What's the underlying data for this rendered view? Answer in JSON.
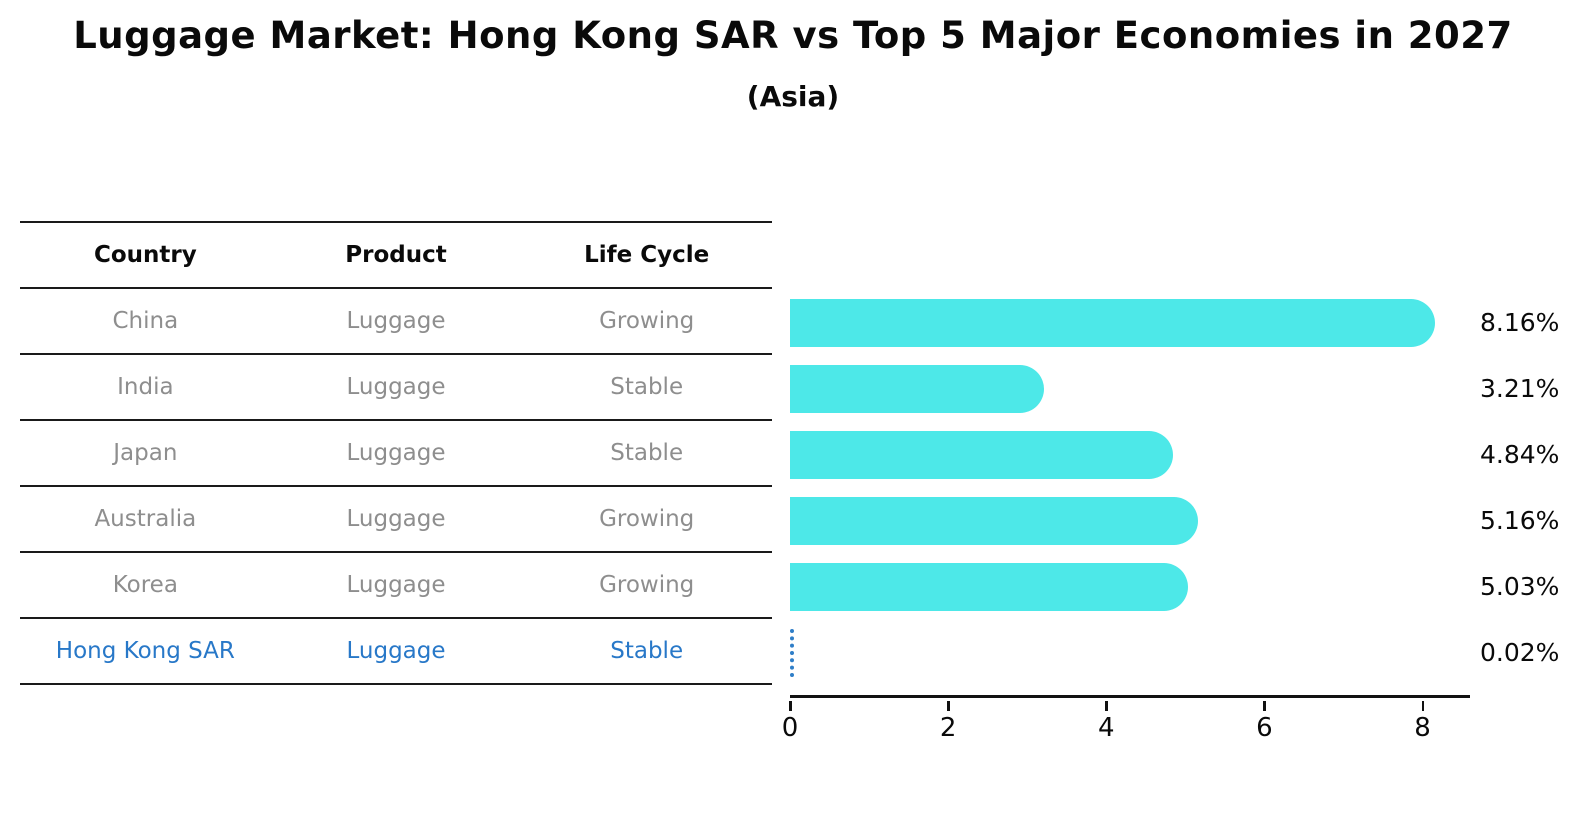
{
  "title": "Luggage Market: Hong Kong SAR vs Top 5 Major Economies in 2027",
  "subtitle": "(Asia)",
  "table": {
    "headers": [
      "Country",
      "Product",
      "Life Cycle"
    ],
    "rows": [
      {
        "country": "China",
        "product": "Luggage",
        "life_cycle": "Growing"
      },
      {
        "country": "India",
        "product": "Luggage",
        "life_cycle": "Stable"
      },
      {
        "country": "Japan",
        "product": "Luggage",
        "life_cycle": "Stable"
      },
      {
        "country": "Australia",
        "product": "Luggage",
        "life_cycle": "Growing"
      },
      {
        "country": "Korea",
        "product": "Luggage",
        "life_cycle": "Growing"
      },
      {
        "country": "Hong Kong SAR",
        "product": "Luggage",
        "life_cycle": "Stable"
      }
    ],
    "highlighted_row": "Hong Kong SAR"
  },
  "chart_data": {
    "type": "bar",
    "orientation": "horizontal",
    "categories": [
      "China",
      "India",
      "Japan",
      "Australia",
      "Korea",
      "Hong Kong SAR"
    ],
    "values": [
      8.16,
      3.21,
      4.84,
      5.16,
      5.03,
      0.02
    ],
    "value_labels": [
      "8.16%",
      "3.21%",
      "4.84%",
      "5.16%",
      "5.03%",
      "0.02%"
    ],
    "title": "Luggage Market: Hong Kong SAR vs Top 5 Major Economies in 2027 (Asia)",
    "xlabel": "",
    "ylabel": "",
    "xlim": [
      0,
      8.6
    ],
    "x_ticks": [
      0,
      2,
      4,
      6,
      8
    ],
    "x_tick_labels": [
      "0",
      "2",
      "4",
      "6",
      "8"
    ],
    "grid": false,
    "highlight_index": 5,
    "bar_color": "#4DE8E8",
    "highlight_color": "#2F7EC8"
  },
  "colors": {
    "background": "#FFFFFF",
    "bar": "#4DE8E8",
    "highlight_text": "#2878C8",
    "table_text_muted": "#8E8E8E",
    "heading_text": "#0A0A0A",
    "rule_line": "#1A1A1A"
  }
}
